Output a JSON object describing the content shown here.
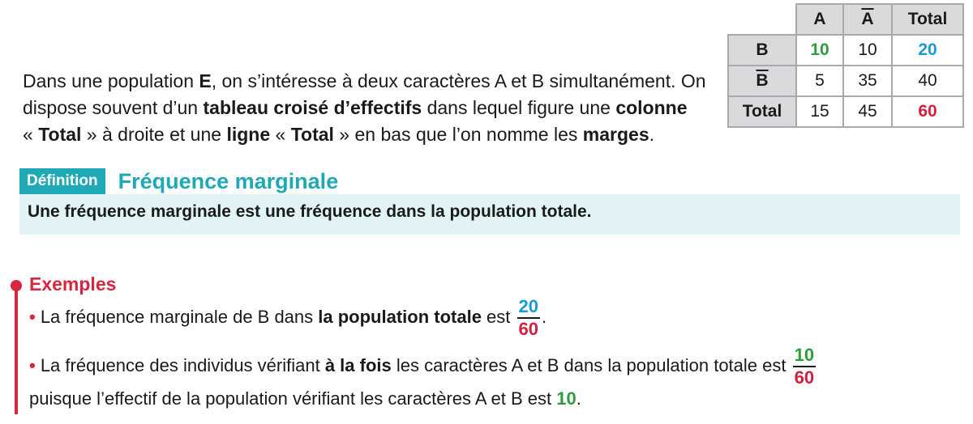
{
  "intro": {
    "t1": "Dans une population ",
    "b1": "E",
    "t2": ", on s’intéresse à deux caractères A et B simultanément. On dispose souvent d’un ",
    "b2": "tableau croisé d’effectifs",
    "t3": " dans lequel figure une ",
    "b3": "colonne",
    "t4": " « ",
    "b4": "Total",
    "t5": " » à droite et une ",
    "b5": "ligne",
    "t6": " « ",
    "b6": "Total",
    "t7": " » en bas que l’on nomme les ",
    "b7": "marges",
    "t8": "."
  },
  "table": {
    "headers": [
      "A",
      "A",
      "Total"
    ],
    "rows": [
      {
        "label": "B",
        "cells": [
          "10",
          "10",
          "20"
        ]
      },
      {
        "label": "B",
        "cells": [
          "5",
          "35",
          "40"
        ]
      },
      {
        "label": "Total",
        "cells": [
          "15",
          "45",
          "60"
        ]
      }
    ]
  },
  "definition": {
    "tag": "Définition",
    "title": "Fréquence marginale",
    "b_pre": "Une ",
    "b_bold": "fréquence marginale",
    "b_post": " est une fréquence dans la population totale."
  },
  "examples": {
    "title": "Exemples",
    "bullet": "•",
    "ex1": {
      "t1": " La fréquence marginale de B dans ",
      "b1": "la population totale",
      "t2": " est ",
      "num": "20",
      "den": "60",
      "t3": "."
    },
    "ex2": {
      "t1": " La fréquence des individus vérifiant ",
      "b1": "à la fois",
      "t2": " les caractères A et B dans la population totale est ",
      "num": "10",
      "den": "60",
      "t3": "puisque l’effectif de la population vérifiant les caractères A et B est ",
      "b2": "10",
      "t4": "."
    }
  },
  "colors": {
    "teal": "#1fa9b7",
    "teal_light": "#e1f3f5",
    "red": "#d9263f",
    "green": "#2e9c3f",
    "blue": "#1a9ad6",
    "table_gray": "#d9dadc"
  }
}
